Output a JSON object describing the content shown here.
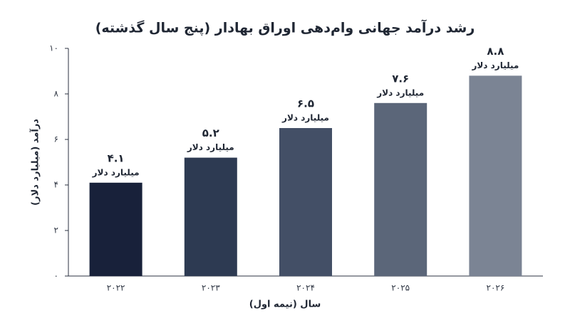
{
  "chart_data": {
    "type": "bar",
    "title": "رشد درآمد جهانی وام‌دهی اوراق بهادار (پنج سال گذشته)",
    "x_label": "سال (نیمه اول)",
    "y_label": "درآمد (میلیارد دلار)",
    "categories": [
      "۲۰۲۲",
      "۲۰۲۳",
      "۲۰۲۴",
      "۲۰۲۵",
      "۲۰۲۶"
    ],
    "values": [
      4.1,
      5.2,
      6.5,
      7.6,
      8.8
    ],
    "value_labels": [
      "۴.۱",
      "۵.۲",
      "۶.۵",
      "۷.۶",
      "۸.۸"
    ],
    "value_unit": "میلیارد دلار",
    "colors": [
      "#18213a",
      "#2d3a52",
      "#434f66",
      "#5b6679",
      "#7b8494"
    ],
    "ylim": [
      0,
      10
    ],
    "yticks": [
      {
        "value": 0,
        "label": "۰"
      },
      {
        "value": 2,
        "label": "۲"
      },
      {
        "value": 4,
        "label": "۴"
      },
      {
        "value": 6,
        "label": "۶"
      },
      {
        "value": 8,
        "label": "۸"
      },
      {
        "value": 10,
        "label": "۱۰"
      }
    ],
    "grid": false
  }
}
